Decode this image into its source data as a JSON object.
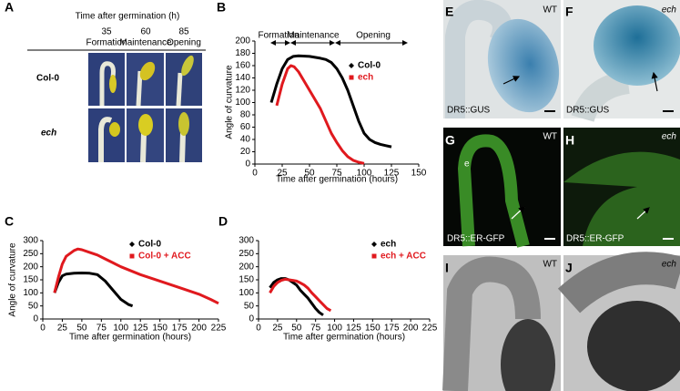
{
  "panel_a": {
    "label": "A",
    "title": "Time after germination (h)",
    "columns": [
      {
        "time": "35",
        "stage": "Formation"
      },
      {
        "time": "60",
        "stage": "Maintenance"
      },
      {
        "time": "85",
        "stage": "Opening"
      }
    ],
    "rows": [
      "Col-0",
      "ech"
    ]
  },
  "chart_data": [
    {
      "type": "line",
      "label": "B",
      "ylabel": "Angle of curvature",
      "xlabel": "Time after germination (hours)",
      "annotations": [
        "Formation",
        "Maintenance",
        "Opening"
      ],
      "xlim": [
        0,
        150
      ],
      "xticks": [
        0,
        25,
        50,
        75,
        100,
        125,
        150
      ],
      "ylim": [
        0,
        200
      ],
      "yticks": [
        0,
        20,
        40,
        60,
        80,
        100,
        120,
        140,
        160,
        180,
        200
      ],
      "legend": "upper right",
      "series": [
        {
          "name": "Col-0",
          "color": "#000000",
          "x": [
            15,
            20,
            25,
            30,
            35,
            40,
            50,
            60,
            65,
            70,
            75,
            80,
            85,
            90,
            95,
            100,
            105,
            110,
            115,
            120,
            125
          ],
          "values": [
            100,
            130,
            155,
            170,
            175,
            176,
            175,
            172,
            170,
            165,
            155,
            140,
            120,
            95,
            70,
            50,
            40,
            35,
            32,
            30,
            28
          ]
        },
        {
          "name": "ech",
          "color": "#e0191e",
          "x": [
            20,
            25,
            30,
            33,
            36,
            40,
            45,
            50,
            55,
            60,
            65,
            70,
            75,
            80,
            85,
            90,
            95,
            100
          ],
          "values": [
            95,
            130,
            155,
            160,
            158,
            150,
            135,
            120,
            105,
            90,
            70,
            50,
            35,
            22,
            12,
            6,
            3,
            1
          ]
        }
      ]
    },
    {
      "type": "line",
      "label": "C",
      "ylabel": "Angle of curvature",
      "xlabel": "Time after germination (hours)",
      "xlim": [
        0,
        225
      ],
      "xticks": [
        0,
        25,
        50,
        75,
        100,
        125,
        150,
        175,
        200,
        225
      ],
      "ylim": [
        0,
        300
      ],
      "yticks": [
        0,
        50,
        100,
        150,
        200,
        250,
        300
      ],
      "legend": "upper right",
      "series": [
        {
          "name": "Col-0",
          "color": "#000000",
          "x": [
            15,
            20,
            25,
            30,
            40,
            50,
            60,
            70,
            80,
            90,
            100,
            110,
            115
          ],
          "values": [
            100,
            140,
            165,
            172,
            175,
            176,
            175,
            170,
            145,
            110,
            75,
            55,
            50
          ]
        },
        {
          "name": "Col-0 + ACC",
          "color": "#e0191e",
          "x": [
            15,
            20,
            25,
            30,
            40,
            45,
            50,
            60,
            70,
            80,
            90,
            100,
            125,
            150,
            175,
            200,
            215,
            225
          ],
          "values": [
            100,
            160,
            210,
            240,
            262,
            268,
            265,
            255,
            245,
            230,
            215,
            200,
            170,
            145,
            120,
            95,
            75,
            60
          ]
        }
      ]
    },
    {
      "type": "line",
      "label": "D",
      "xlabel": "Time after germination (hours)",
      "xlim": [
        0,
        225
      ],
      "xticks": [
        0,
        25,
        50,
        75,
        100,
        125,
        150,
        175,
        200,
        225
      ],
      "ylim": [
        0,
        300
      ],
      "yticks": [
        0,
        50,
        100,
        150,
        200,
        250,
        300
      ],
      "legend": "upper right",
      "series": [
        {
          "name": "ech",
          "color": "#000000",
          "x": [
            15,
            20,
            25,
            30,
            35,
            40,
            45,
            50,
            55,
            60,
            65,
            70,
            75,
            80,
            85
          ],
          "values": [
            120,
            140,
            150,
            155,
            155,
            150,
            140,
            130,
            110,
            95,
            80,
            60,
            40,
            25,
            15
          ]
        },
        {
          "name": "ech + ACC",
          "color": "#e0191e",
          "x": [
            15,
            20,
            25,
            30,
            35,
            40,
            45,
            50,
            55,
            60,
            65,
            70,
            75,
            80,
            85,
            90,
            95
          ],
          "values": [
            100,
            125,
            140,
            148,
            152,
            150,
            148,
            145,
            138,
            130,
            118,
            100,
            85,
            70,
            55,
            40,
            32
          ]
        }
      ]
    }
  ],
  "image_panels": [
    {
      "label": "E",
      "genotype": "WT",
      "marker": "DR5::GUS"
    },
    {
      "label": "F",
      "genotype": "ech",
      "marker": "DR5::GUS"
    },
    {
      "label": "G",
      "genotype": "WT",
      "marker": "DR5::ER-GFP",
      "annotation": "e"
    },
    {
      "label": "H",
      "genotype": "ech",
      "marker": "DR5::ER-GFP"
    },
    {
      "label": "I",
      "genotype": "WT"
    },
    {
      "label": "J",
      "genotype": "ech"
    }
  ]
}
